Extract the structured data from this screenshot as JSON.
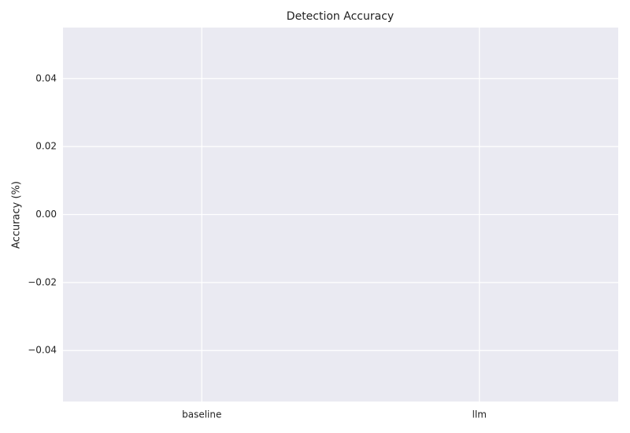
{
  "chart_data": {
    "type": "bar",
    "title": "Detection Accuracy",
    "y_label": "Accuracy (%)",
    "categories": [
      "baseline",
      "llm"
    ],
    "values": [
      0,
      0
    ],
    "ylim": [
      -0.055,
      0.055
    ],
    "yticks": [
      {
        "value": -0.04,
        "label": "−0.04"
      },
      {
        "value": -0.02,
        "label": "−0.02"
      },
      {
        "value": 0,
        "label": "0.00"
      },
      0.02,
      0.04
    ],
    "grid": true
  }
}
